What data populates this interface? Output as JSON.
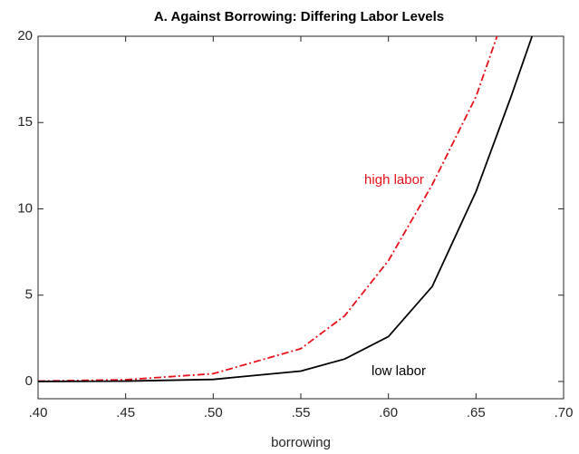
{
  "chart_data": {
    "type": "line",
    "title": "A. Against Borrowing: Differing Labor Levels",
    "xlabel": "borrowing",
    "x": [
      0.4,
      0.45,
      0.5,
      0.55,
      0.575,
      0.6,
      0.625,
      0.65,
      0.662,
      0.67,
      0.682
    ],
    "series": [
      {
        "name": "high labor",
        "color": "#e8101a",
        "dash": "8 3 2 3",
        "values": [
          0.02,
          0.1,
          0.45,
          1.9,
          3.8,
          7.0,
          11.4,
          16.5,
          20,
          null,
          null
        ]
      },
      {
        "name": "low labor",
        "color": "#000000",
        "dash": "none",
        "values": [
          0,
          0.02,
          0.12,
          0.6,
          1.3,
          2.6,
          5.5,
          11,
          14.3,
          16.5,
          20
        ]
      }
    ],
    "xlim": [
      0.4,
      0.7
    ],
    "xticks": [
      {
        "value": 0.4,
        "label": ".40"
      },
      {
        "value": 0.45,
        "label": ".45"
      },
      {
        "value": 0.5,
        "label": ".50"
      },
      {
        "value": 0.55,
        "label": ".55"
      },
      {
        "value": 0.6,
        "label": ".60"
      },
      {
        "value": 0.65,
        "label": ".65"
      },
      {
        "value": 0.7,
        "label": ".70"
      }
    ],
    "ylim": [
      -1,
      20
    ],
    "yticks": [
      0,
      5,
      10,
      15,
      20
    ],
    "grid": false
  }
}
